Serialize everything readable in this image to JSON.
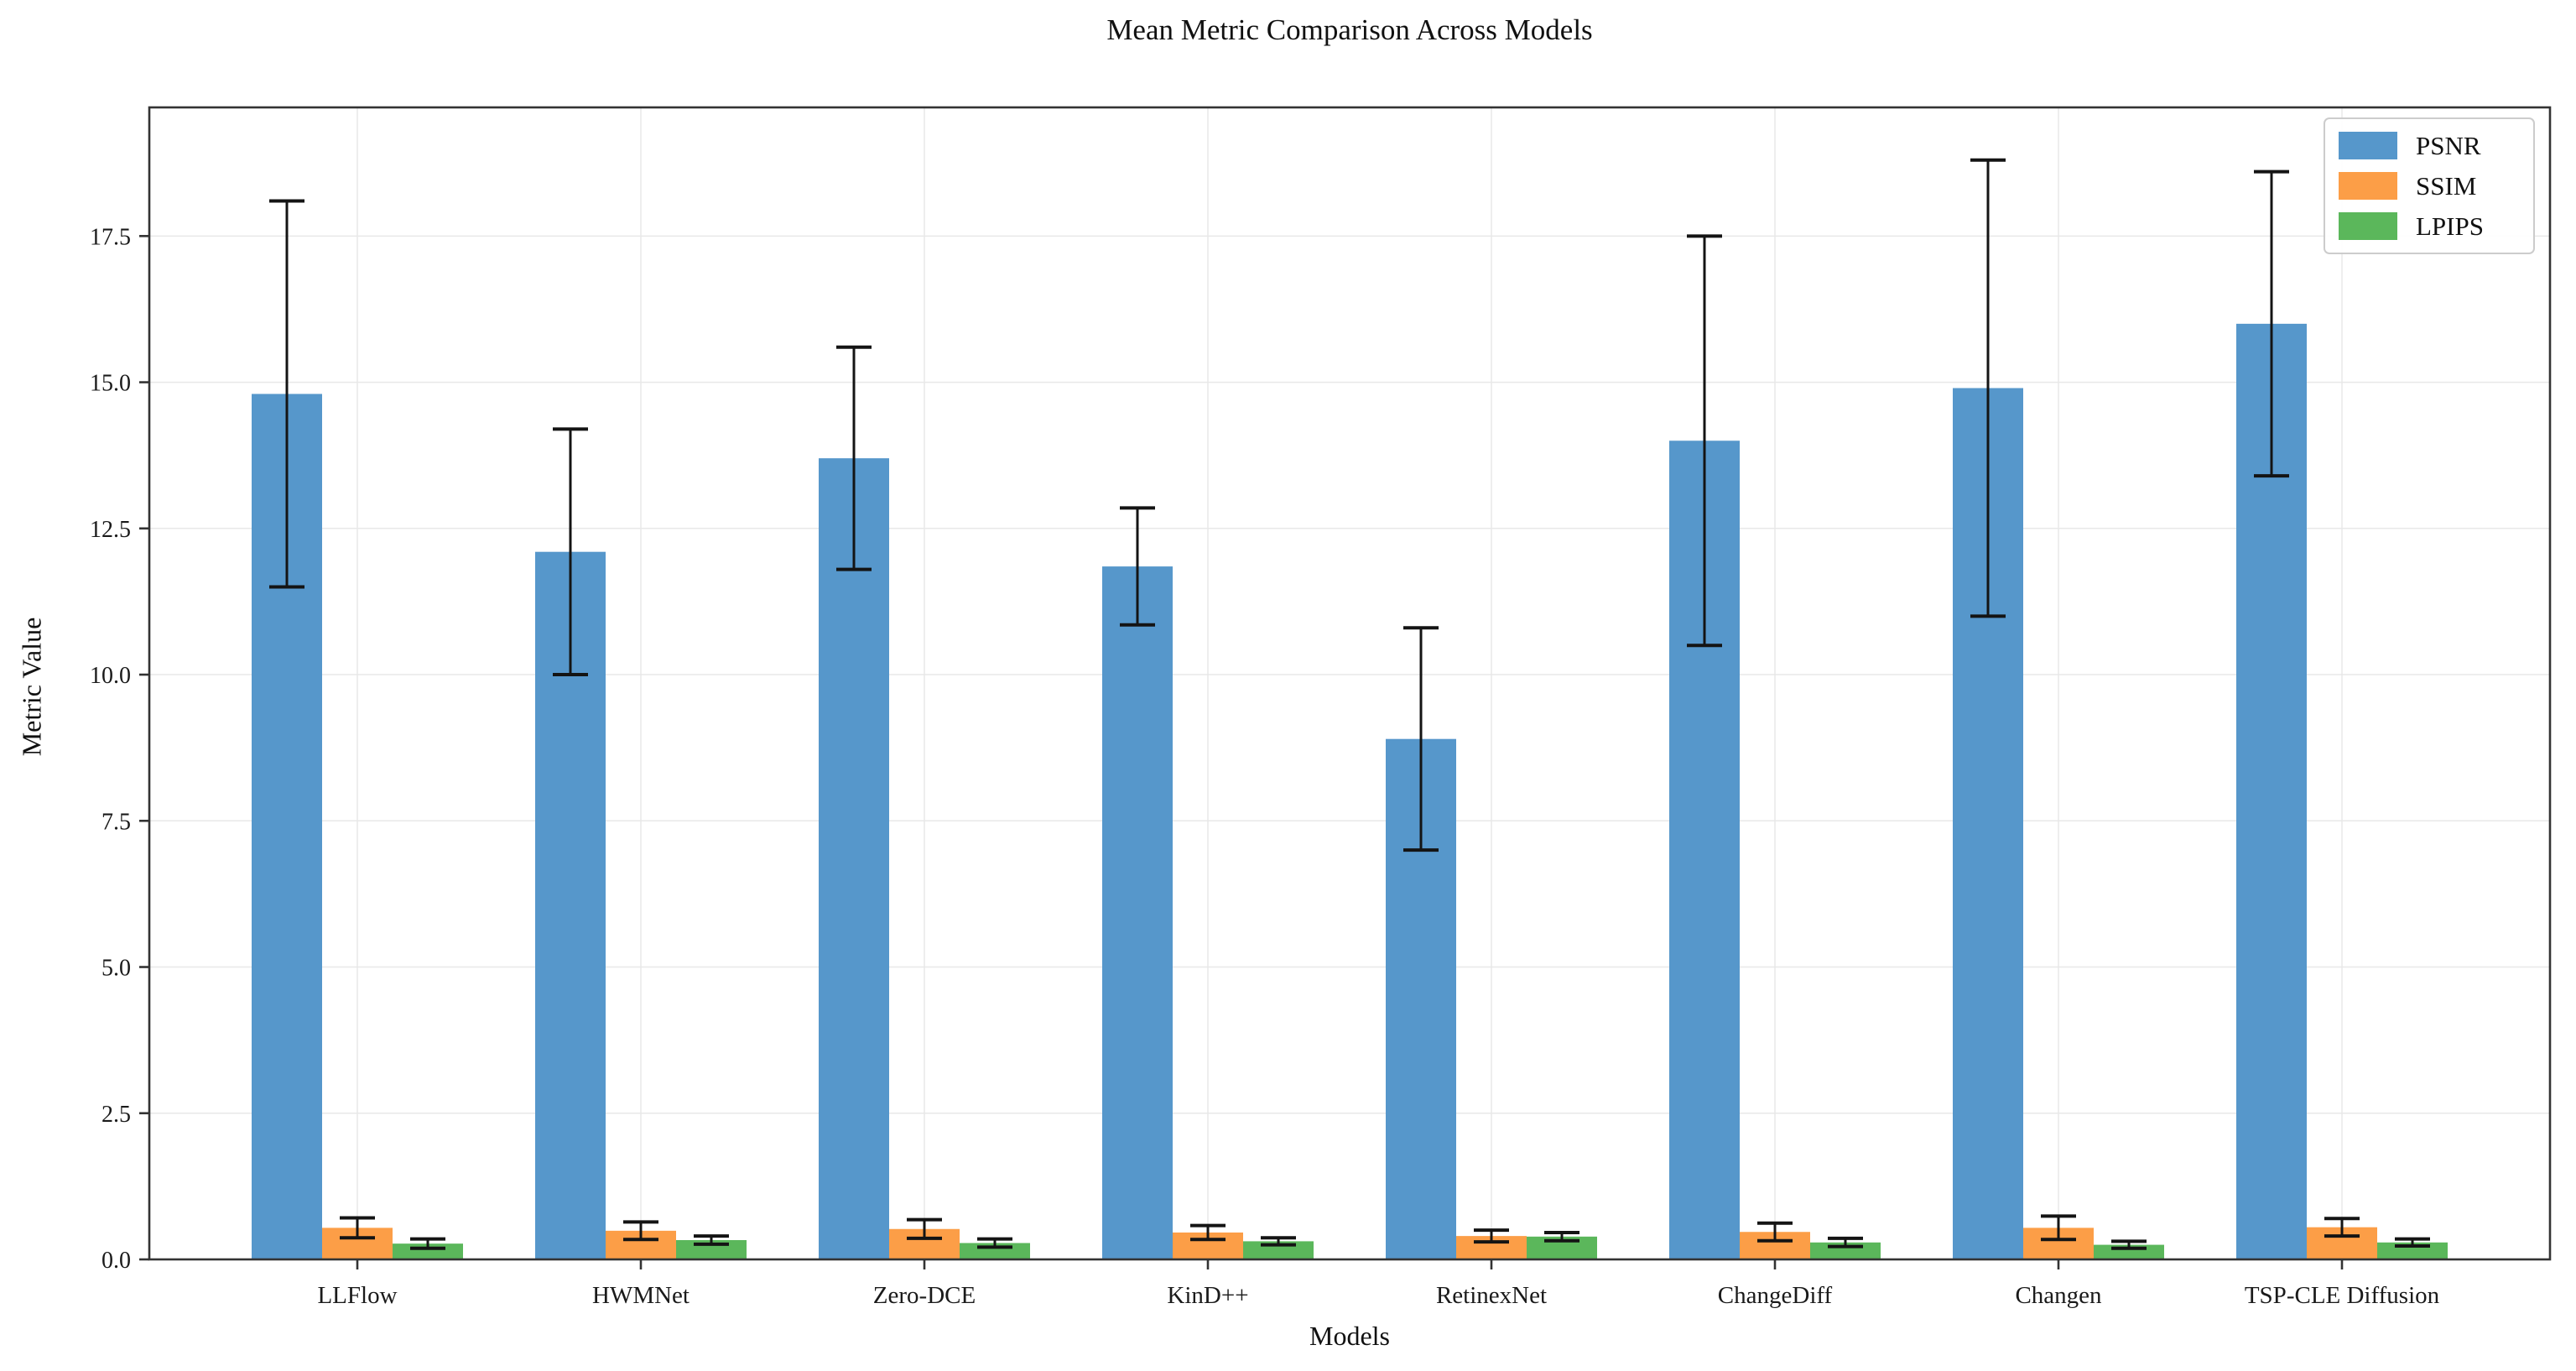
{
  "figure": {
    "title": "Mean Metric Comparison Across Models"
  },
  "chart_data": {
    "type": "bar",
    "title": "Mean Metric Comparison Across Models",
    "xlabel": "Models",
    "ylabel": "Metric Value",
    "categories": [
      "LLFlow",
      "HWMNet",
      "Zero-DCE",
      "KinD++",
      "RetinexNet",
      "ChangeDiff",
      "Changen",
      "TSP-CLE Diffusion"
    ],
    "series": [
      {
        "name": "PSNR",
        "color": "#5697CB",
        "values": [
          14.8,
          12.1,
          13.7,
          11.85,
          8.9,
          14.0,
          14.9,
          16.0
        ],
        "errors": [
          3.3,
          2.1,
          1.9,
          1.0,
          1.9,
          3.5,
          3.9,
          2.6
        ]
      },
      {
        "name": "SSIM",
        "color": "#FC9E47",
        "values": [
          0.54,
          0.49,
          0.52,
          0.46,
          0.4,
          0.47,
          0.54,
          0.55
        ],
        "errors": [
          0.17,
          0.15,
          0.16,
          0.12,
          0.1,
          0.15,
          0.2,
          0.15
        ]
      },
      {
        "name": "LPIPS",
        "color": "#5BB75B",
        "values": [
          0.27,
          0.33,
          0.28,
          0.31,
          0.39,
          0.29,
          0.25,
          0.29
        ],
        "errors": [
          0.08,
          0.07,
          0.07,
          0.06,
          0.07,
          0.07,
          0.06,
          0.06
        ]
      }
    ],
    "ylim": [
      0,
      19.7
    ],
    "yticks": [
      0,
      2.5,
      5,
      7.5,
      10,
      12.5,
      15,
      17.5
    ],
    "ytick_labels": [
      "0.0",
      "2.5",
      "5.0",
      "7.5",
      "10.0",
      "12.5",
      "15.0",
      "17.5"
    ],
    "grid": true,
    "legend_position": "upper right",
    "error_color": "#141414",
    "grid_color": "#e8e8e8",
    "spine_color": "#333333"
  }
}
